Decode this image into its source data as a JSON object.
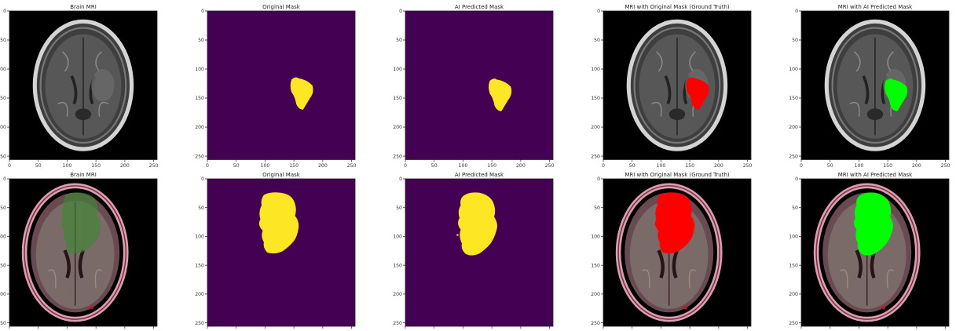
{
  "titles": {
    "brain_mri": "Brain MRI",
    "original_mask": "Original Mask",
    "ai_predicted_mask": "AI Predicted Mask",
    "mri_with_original_mask": "MRI with Original Mask (Ground Truth)",
    "mri_with_ai_predicted_mask": "MRI with AI Predicted Mask"
  },
  "axis_ticks": {
    "x": [
      "0",
      "50",
      "100",
      "150",
      "200",
      "250"
    ],
    "y": [
      "0",
      "50",
      "100",
      "150",
      "200",
      "250"
    ]
  },
  "colors": {
    "mask_background": "#440154",
    "mask_foreground": "#fde725",
    "ground_truth_overlay": "#ff0000",
    "ai_prediction_overlay": "#00ff00"
  }
}
